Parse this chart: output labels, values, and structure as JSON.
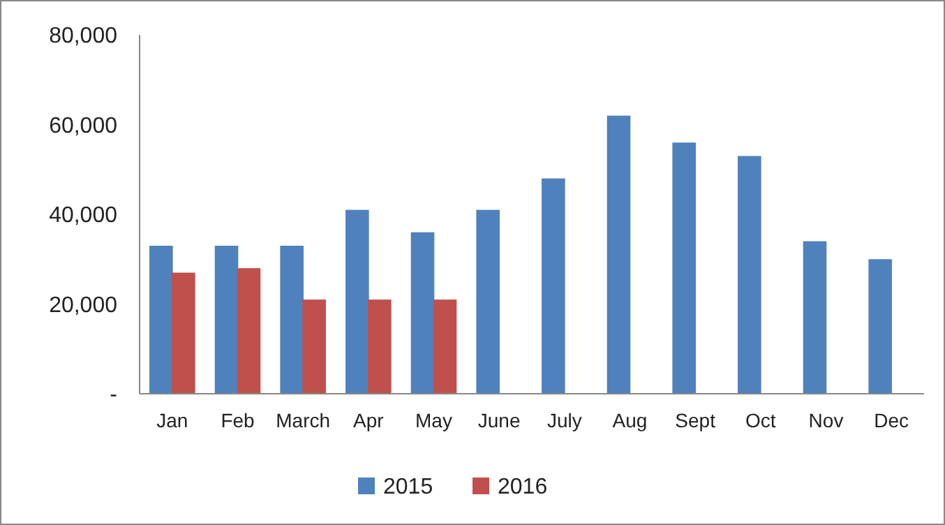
{
  "chart_data": {
    "type": "bar",
    "categories": [
      "Jan",
      "Feb",
      "March",
      "Apr",
      "May",
      "June",
      "July",
      "Aug",
      "Sept",
      "Oct",
      "Nov",
      "Dec"
    ],
    "series": [
      {
        "name": "2015",
        "color": "#4f81bd",
        "values": [
          33000,
          33000,
          33000,
          41000,
          36000,
          41000,
          48000,
          62000,
          56000,
          53000,
          34000,
          30000
        ]
      },
      {
        "name": "2016",
        "color": "#c0504d",
        "values": [
          27000,
          28000,
          21000,
          21000,
          21000,
          null,
          null,
          null,
          null,
          null,
          null,
          null
        ]
      }
    ],
    "ylim": [
      0,
      80000
    ],
    "yticks": [
      {
        "value": 0,
        "label": "-"
      },
      {
        "value": 20000,
        "label": "20,000"
      },
      {
        "value": 40000,
        "label": "40,000"
      },
      {
        "value": 60000,
        "label": "60,000"
      },
      {
        "value": 80000,
        "label": "80,000"
      }
    ],
    "grid": false,
    "legend": "bottom"
  }
}
